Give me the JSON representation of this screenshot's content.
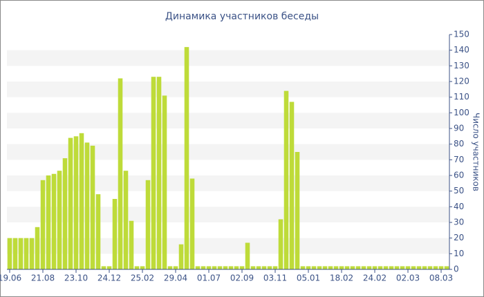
{
  "chart_data": {
    "type": "bar",
    "title": "Динамика участников беседы",
    "y_label": "Число участников",
    "categories": [
      "19.06",
      null,
      null,
      null,
      null,
      null,
      "21.08",
      null,
      null,
      null,
      null,
      null,
      "23.10",
      null,
      null,
      null,
      null,
      null,
      "24.12",
      null,
      null,
      null,
      null,
      null,
      "25.02",
      null,
      null,
      null,
      null,
      null,
      "29.04",
      null,
      null,
      null,
      null,
      null,
      "01.07",
      null,
      null,
      null,
      null,
      null,
      "02.09",
      null,
      null,
      null,
      null,
      null,
      "03.11",
      null,
      null,
      null,
      null,
      null,
      "05.01",
      null,
      null,
      null,
      null,
      null,
      "18.02",
      null,
      null,
      null,
      null,
      null,
      "24.02",
      null,
      null,
      null,
      null,
      null,
      "02.03",
      null,
      null,
      null,
      null,
      null,
      "08.03",
      null
    ],
    "values": [
      20,
      20,
      20,
      20,
      20,
      27,
      57,
      60,
      61,
      63,
      71,
      84,
      85,
      87,
      81,
      79,
      48,
      2,
      2,
      45,
      122,
      63,
      31,
      2,
      2,
      57,
      123,
      123,
      111,
      2,
      2,
      16,
      142,
      58,
      2,
      2,
      2,
      2,
      2,
      2,
      2,
      2,
      2,
      17,
      2,
      2,
      2,
      2,
      2,
      32,
      114,
      107,
      75,
      2,
      2,
      2,
      2,
      2,
      2,
      2,
      2,
      2,
      2,
      2,
      2,
      2,
      2,
      2,
      2,
      2,
      2,
      2,
      2,
      2,
      2,
      2,
      2,
      2,
      2,
      2
    ],
    "color": "#bedb39",
    "ylim": [
      0,
      150
    ],
    "yticks": [
      0,
      10,
      20,
      30,
      40,
      50,
      60,
      70,
      80,
      90,
      100,
      110,
      120,
      130,
      140,
      150
    ],
    "grid": true
  }
}
